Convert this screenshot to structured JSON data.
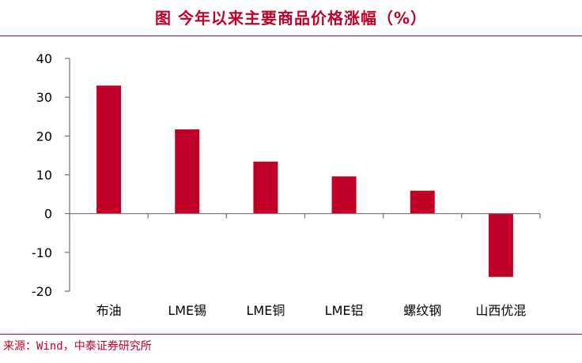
{
  "header": {
    "title": "图  今年以来主要商品价格涨幅（%）"
  },
  "footer": {
    "source": "来源：Wind，中泰证券研究所"
  },
  "colors": {
    "accent": "#c00026",
    "bar": "#c00026",
    "axis": "#6d6d6d"
  },
  "chart_data": {
    "type": "bar",
    "categories": [
      "布油",
      "LME锡",
      "LME铜",
      "LME铝",
      "螺纹钢",
      "山西优混"
    ],
    "values": [
      33,
      21.7,
      13.4,
      9.6,
      5.9,
      -16.3
    ],
    "ylim": [
      -20,
      40
    ],
    "yticks": [
      -20,
      -10,
      0,
      10,
      20,
      30,
      40
    ],
    "grid": false
  }
}
